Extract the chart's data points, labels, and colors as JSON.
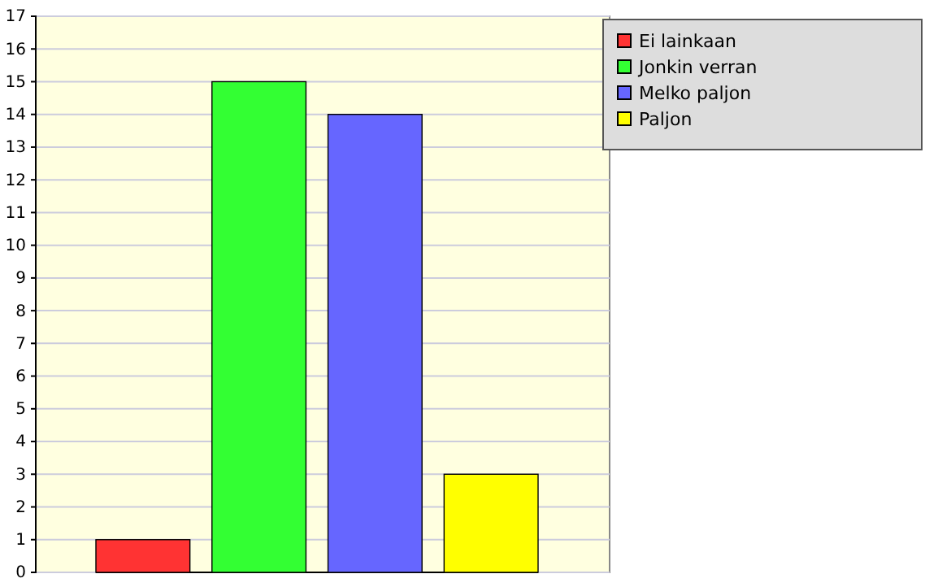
{
  "chart_data": {
    "type": "bar",
    "categories": [
      null,
      null,
      null,
      null
    ],
    "series": [
      {
        "name": "Ei lainkaan",
        "color": "#ff3333",
        "values": [
          1,
          null,
          null,
          null
        ]
      },
      {
        "name": "Jonkin verran",
        "color": "#33ff33",
        "values": [
          null,
          15,
          null,
          null
        ]
      },
      {
        "name": "Melko paljon",
        "color": "#6666ff",
        "values": [
          null,
          null,
          14,
          null
        ]
      },
      {
        "name": "Paljon",
        "color": "#ffff00",
        "values": [
          null,
          null,
          null,
          3
        ]
      }
    ],
    "ylim": [
      0,
      17
    ],
    "yticks": [
      0,
      1,
      2,
      3,
      4,
      5,
      6,
      7,
      8,
      9,
      10,
      11,
      12,
      13,
      14,
      15,
      16,
      17
    ],
    "grid": "y",
    "legend": "top right"
  }
}
